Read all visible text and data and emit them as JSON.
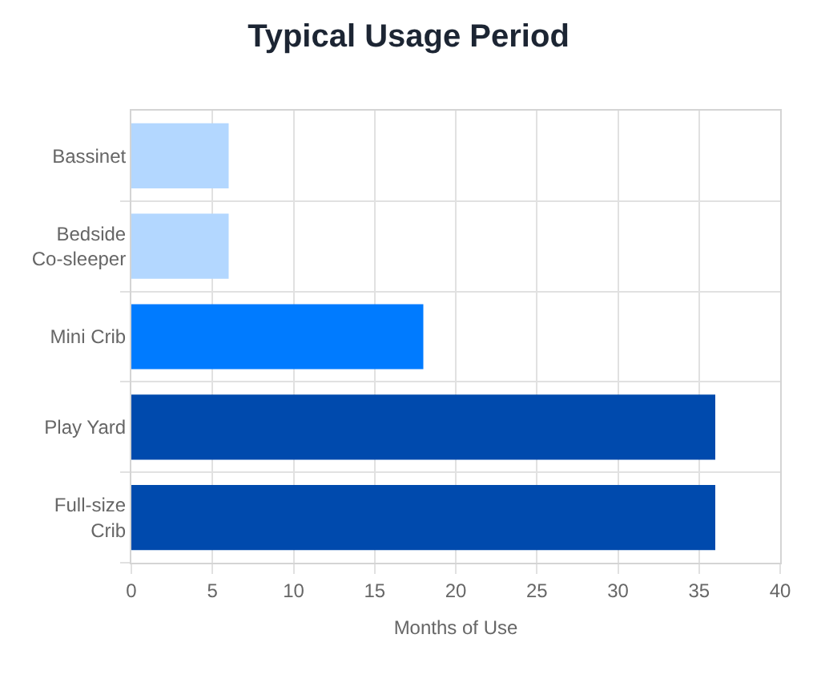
{
  "chart_data": {
    "type": "bar",
    "orientation": "horizontal",
    "title": "Typical Usage Period",
    "xlabel": "Months of Use",
    "categories": [
      "Bassinet",
      "Bedside Co-sleeper",
      "Mini Crib",
      "Play Yard",
      "Full-size Crib"
    ],
    "values": [
      6,
      6,
      18,
      36,
      36
    ],
    "colors": [
      "#b3d7ff",
      "#b3d7ff",
      "#007bff",
      "#004aad",
      "#004aad"
    ],
    "xlim": [
      0,
      40
    ],
    "xticks": [
      0,
      5,
      10,
      15,
      20,
      25,
      30,
      35,
      40
    ],
    "grid": true
  }
}
